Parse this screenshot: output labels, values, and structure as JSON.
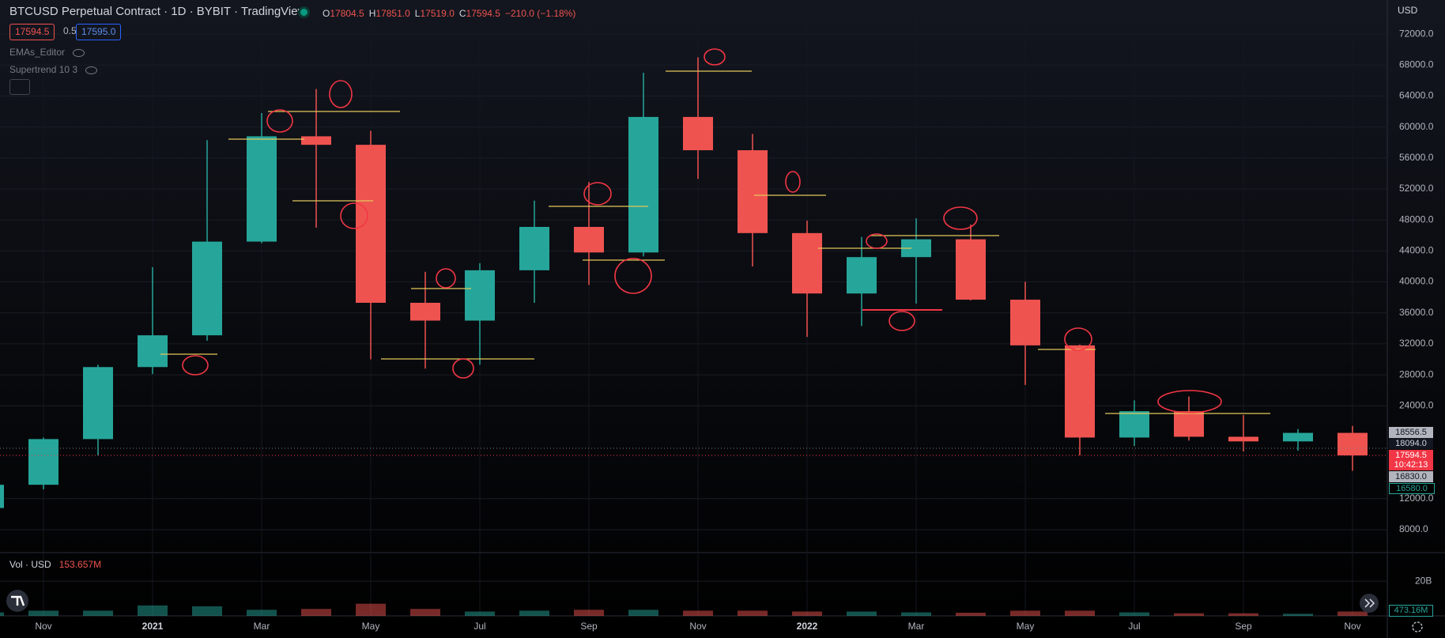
{
  "header": {
    "title": "BTCUSD Perpetual Contract · 1D · BYBIT · TradingView",
    "ohlc": [
      {
        "key": "O",
        "value": "17804.5"
      },
      {
        "key": "H",
        "value": "17851.0"
      },
      {
        "key": "L",
        "value": "17519.0"
      },
      {
        "key": "C",
        "value": "17594.5"
      }
    ],
    "change": "−210.0 (−1.18%)",
    "sell": "17594.5",
    "spread": "0.5",
    "buy": "17595.0",
    "indicators": [
      "EMAs_Editor",
      "Supertrend 10 3"
    ],
    "currency": "USD",
    "price_badges": [
      "18556.5",
      "18094.0",
      "17594.5",
      "10:42:13",
      "16830.0",
      "16580.0"
    ]
  },
  "chart_data": {
    "type": "candlestick",
    "categories": [
      null,
      "Nov",
      null,
      "2021",
      null,
      "Mar",
      null,
      "May",
      null,
      "Jul",
      null,
      "Sep",
      null,
      "Nov",
      null,
      "2022",
      null,
      "Mar",
      null,
      "May",
      null,
      "Jul",
      null,
      "Sep",
      null,
      "Nov"
    ],
    "open": [
      10800,
      13800,
      19700,
      29000,
      33100,
      45200,
      58800,
      57700,
      37300,
      35000,
      41500,
      47100,
      43800,
      61300,
      57000,
      46300,
      38500,
      43200,
      45500,
      37700,
      31800,
      19900,
      23300,
      20000,
      19400,
      20500
    ],
    "high": [
      14100,
      19900,
      29300,
      41900,
      58300,
      61800,
      64900,
      59500,
      41300,
      42400,
      50500,
      52900,
      67000,
      69000,
      59100,
      47900,
      45800,
      48200,
      47400,
      40000,
      31900,
      24700,
      25200,
      22800,
      21000,
      21400
    ],
    "low": [
      10400,
      13200,
      17600,
      28100,
      32400,
      45000,
      47000,
      30000,
      28800,
      29300,
      37300,
      39600,
      43300,
      53300,
      42000,
      32900,
      34300,
      37200,
      37600,
      26700,
      17600,
      18800,
      19500,
      18100,
      18200,
      15600
    ],
    "close": [
      13800,
      19700,
      29000,
      33100,
      45200,
      58800,
      57700,
      37300,
      35000,
      41500,
      47100,
      43800,
      61300,
      57000,
      46300,
      38500,
      43200,
      45500,
      37700,
      31800,
      19900,
      23300,
      20000,
      19400,
      20500,
      17594.5
    ],
    "up_color": "#26a69a",
    "down_color": "#ef5350",
    "ylim": [
      5140,
      76400
    ],
    "yticks": [
      {
        "value": 8000,
        "label": "8000.0"
      },
      {
        "value": 12000,
        "label": "12000.0"
      },
      {
        "value": 24000,
        "label": "24000.0"
      },
      {
        "value": 28000,
        "label": "28000.0"
      },
      {
        "value": 32000,
        "label": "32000.0"
      },
      {
        "value": 36000,
        "label": "36000.0"
      },
      {
        "value": 40000,
        "label": "40000.0"
      },
      {
        "value": 44000,
        "label": "44000.0"
      },
      {
        "value": 48000,
        "label": "48000.0"
      },
      {
        "value": 52000,
        "label": "52000.0"
      },
      {
        "value": 56000,
        "label": "56000.0"
      },
      {
        "value": 60000,
        "label": "60000.0"
      },
      {
        "value": 64000,
        "label": "64000.0"
      },
      {
        "value": 68000,
        "label": "68000.0"
      },
      {
        "value": 72000,
        "label": "72000.0"
      }
    ],
    "volume": {
      "label": "Vol · USD",
      "last": "153.657M",
      "badge": "473.16M",
      "values": [
        2000000000,
        3000000000,
        3000000000,
        6000000000,
        5500000000,
        3500000000,
        4000000000,
        7000000000,
        4000000000,
        2500000000,
        3000000000,
        3500000000,
        3500000000,
        3000000000,
        3000000000,
        2500000000,
        2500000000,
        2000000000,
        1800000000,
        3000000000,
        3000000000,
        2000000000,
        1500000000,
        1500000000,
        1200000000,
        2500000000
      ],
      "ylim": [
        0,
        36000000000
      ],
      "yticks": [
        {
          "value": 20000000000,
          "label": "20B"
        }
      ]
    }
  }
}
